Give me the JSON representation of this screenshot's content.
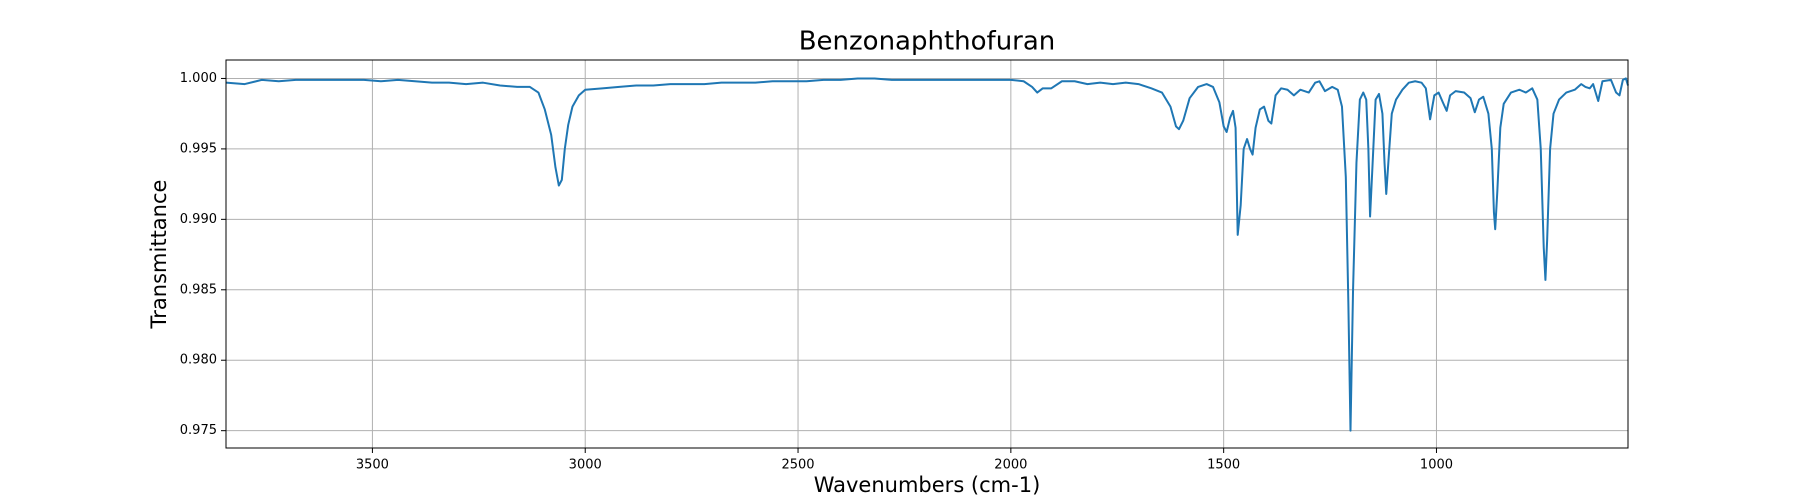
{
  "chart_data": {
    "type": "line",
    "title": "Benzonaphthofuran",
    "x_label": "Wavenumbers (cm-1)",
    "y_label": "Transmittance",
    "x": [
      3844,
      3800,
      3760,
      3720,
      3680,
      3640,
      3600,
      3560,
      3520,
      3480,
      3440,
      3400,
      3360,
      3320,
      3280,
      3240,
      3200,
      3160,
      3130,
      3110,
      3095,
      3080,
      3070,
      3062,
      3055,
      3048,
      3040,
      3030,
      3015,
      3000,
      2960,
      2920,
      2880,
      2840,
      2800,
      2760,
      2720,
      2680,
      2640,
      2600,
      2560,
      2520,
      2480,
      2440,
      2400,
      2360,
      2320,
      2280,
      2240,
      2200,
      2160,
      2120,
      2080,
      2040,
      2000,
      1970,
      1950,
      1938,
      1925,
      1905,
      1880,
      1850,
      1820,
      1790,
      1760,
      1730,
      1700,
      1670,
      1645,
      1625,
      1612,
      1605,
      1595,
      1580,
      1560,
      1540,
      1525,
      1510,
      1500,
      1493,
      1485,
      1478,
      1472,
      1467,
      1460,
      1453,
      1445,
      1438,
      1432,
      1425,
      1415,
      1405,
      1395,
      1388,
      1378,
      1365,
      1350,
      1335,
      1320,
      1300,
      1285,
      1275,
      1262,
      1245,
      1232,
      1222,
      1213,
      1207,
      1202,
      1196,
      1188,
      1180,
      1172,
      1165,
      1160,
      1156,
      1150,
      1143,
      1135,
      1127,
      1122,
      1118,
      1112,
      1105,
      1095,
      1080,
      1065,
      1050,
      1035,
      1025,
      1015,
      1005,
      995,
      985,
      976,
      968,
      955,
      935,
      920,
      910,
      900,
      890,
      878,
      870,
      865,
      862,
      857,
      850,
      842,
      825,
      805,
      790,
      775,
      763,
      755,
      748,
      744,
      740,
      733,
      725,
      712,
      695,
      675,
      660,
      650,
      640,
      632,
      620,
      610,
      590,
      578,
      570,
      562,
      555,
      550
    ],
    "series": [
      {
        "name": "Benzonaphthofuran",
        "color": "#1f77b4",
        "values": [
          0.9997,
          0.9996,
          0.9999,
          0.9998,
          0.9999,
          0.9999,
          0.9999,
          0.9999,
          0.9999,
          0.9998,
          0.9999,
          0.9998,
          0.9997,
          0.9997,
          0.9996,
          0.9997,
          0.9995,
          0.9994,
          0.9994,
          0.999,
          0.9978,
          0.996,
          0.9937,
          0.9924,
          0.9928,
          0.995,
          0.9967,
          0.998,
          0.9988,
          0.9992,
          0.9993,
          0.9994,
          0.9995,
          0.9995,
          0.9996,
          0.9996,
          0.9996,
          0.9997,
          0.9997,
          0.9997,
          0.9998,
          0.9998,
          0.9998,
          0.9999,
          0.9999,
          1.0,
          1.0,
          0.9999,
          0.9999,
          0.9999,
          0.9999,
          0.9999,
          0.9999,
          0.9999,
          0.9999,
          0.9998,
          0.9994,
          0.999,
          0.9993,
          0.9993,
          0.9998,
          0.9998,
          0.9996,
          0.9997,
          0.9996,
          0.9997,
          0.9996,
          0.9993,
          0.999,
          0.998,
          0.9966,
          0.9964,
          0.997,
          0.9986,
          0.9994,
          0.9996,
          0.9994,
          0.9983,
          0.9966,
          0.9962,
          0.9972,
          0.9977,
          0.9965,
          0.9889,
          0.991,
          0.995,
          0.9957,
          0.995,
          0.9946,
          0.9965,
          0.9978,
          0.998,
          0.997,
          0.9968,
          0.9988,
          0.9993,
          0.9992,
          0.9988,
          0.9992,
          0.999,
          0.9997,
          0.9998,
          0.9991,
          0.9994,
          0.9992,
          0.998,
          0.993,
          0.984,
          0.975,
          0.985,
          0.994,
          0.9985,
          0.999,
          0.9985,
          0.995,
          0.9902,
          0.994,
          0.9985,
          0.9989,
          0.9975,
          0.994,
          0.9918,
          0.9945,
          0.9975,
          0.9985,
          0.9992,
          0.9997,
          0.9998,
          0.9997,
          0.9993,
          0.9971,
          0.9988,
          0.999,
          0.9983,
          0.9977,
          0.9988,
          0.9991,
          0.999,
          0.9986,
          0.9976,
          0.9985,
          0.9987,
          0.9975,
          0.995,
          0.9905,
          0.9893,
          0.992,
          0.9965,
          0.9982,
          0.999,
          0.9992,
          0.999,
          0.9993,
          0.9985,
          0.995,
          0.988,
          0.9857,
          0.9885,
          0.995,
          0.9975,
          0.9985,
          0.999,
          0.9992,
          0.9996,
          0.9994,
          0.9993,
          0.9996,
          0.9984,
          0.9998,
          0.9999,
          0.999,
          0.9988,
          0.9999,
          1.0,
          0.9995
        ]
      }
    ],
    "xlim": [
      3844,
      550
    ],
    "ylim": [
      0.97377,
      1.00131
    ],
    "xticks": [
      3500,
      3000,
      2500,
      2000,
      1500,
      1000
    ],
    "yticks": [
      0.975,
      {
        "value": 0.98,
        "label": "0.980"
      },
      0.985,
      {
        "value": 0.99,
        "label": "0.990"
      },
      0.995,
      {
        "value": 1,
        "label": "1.000"
      }
    ],
    "grid": true
  }
}
